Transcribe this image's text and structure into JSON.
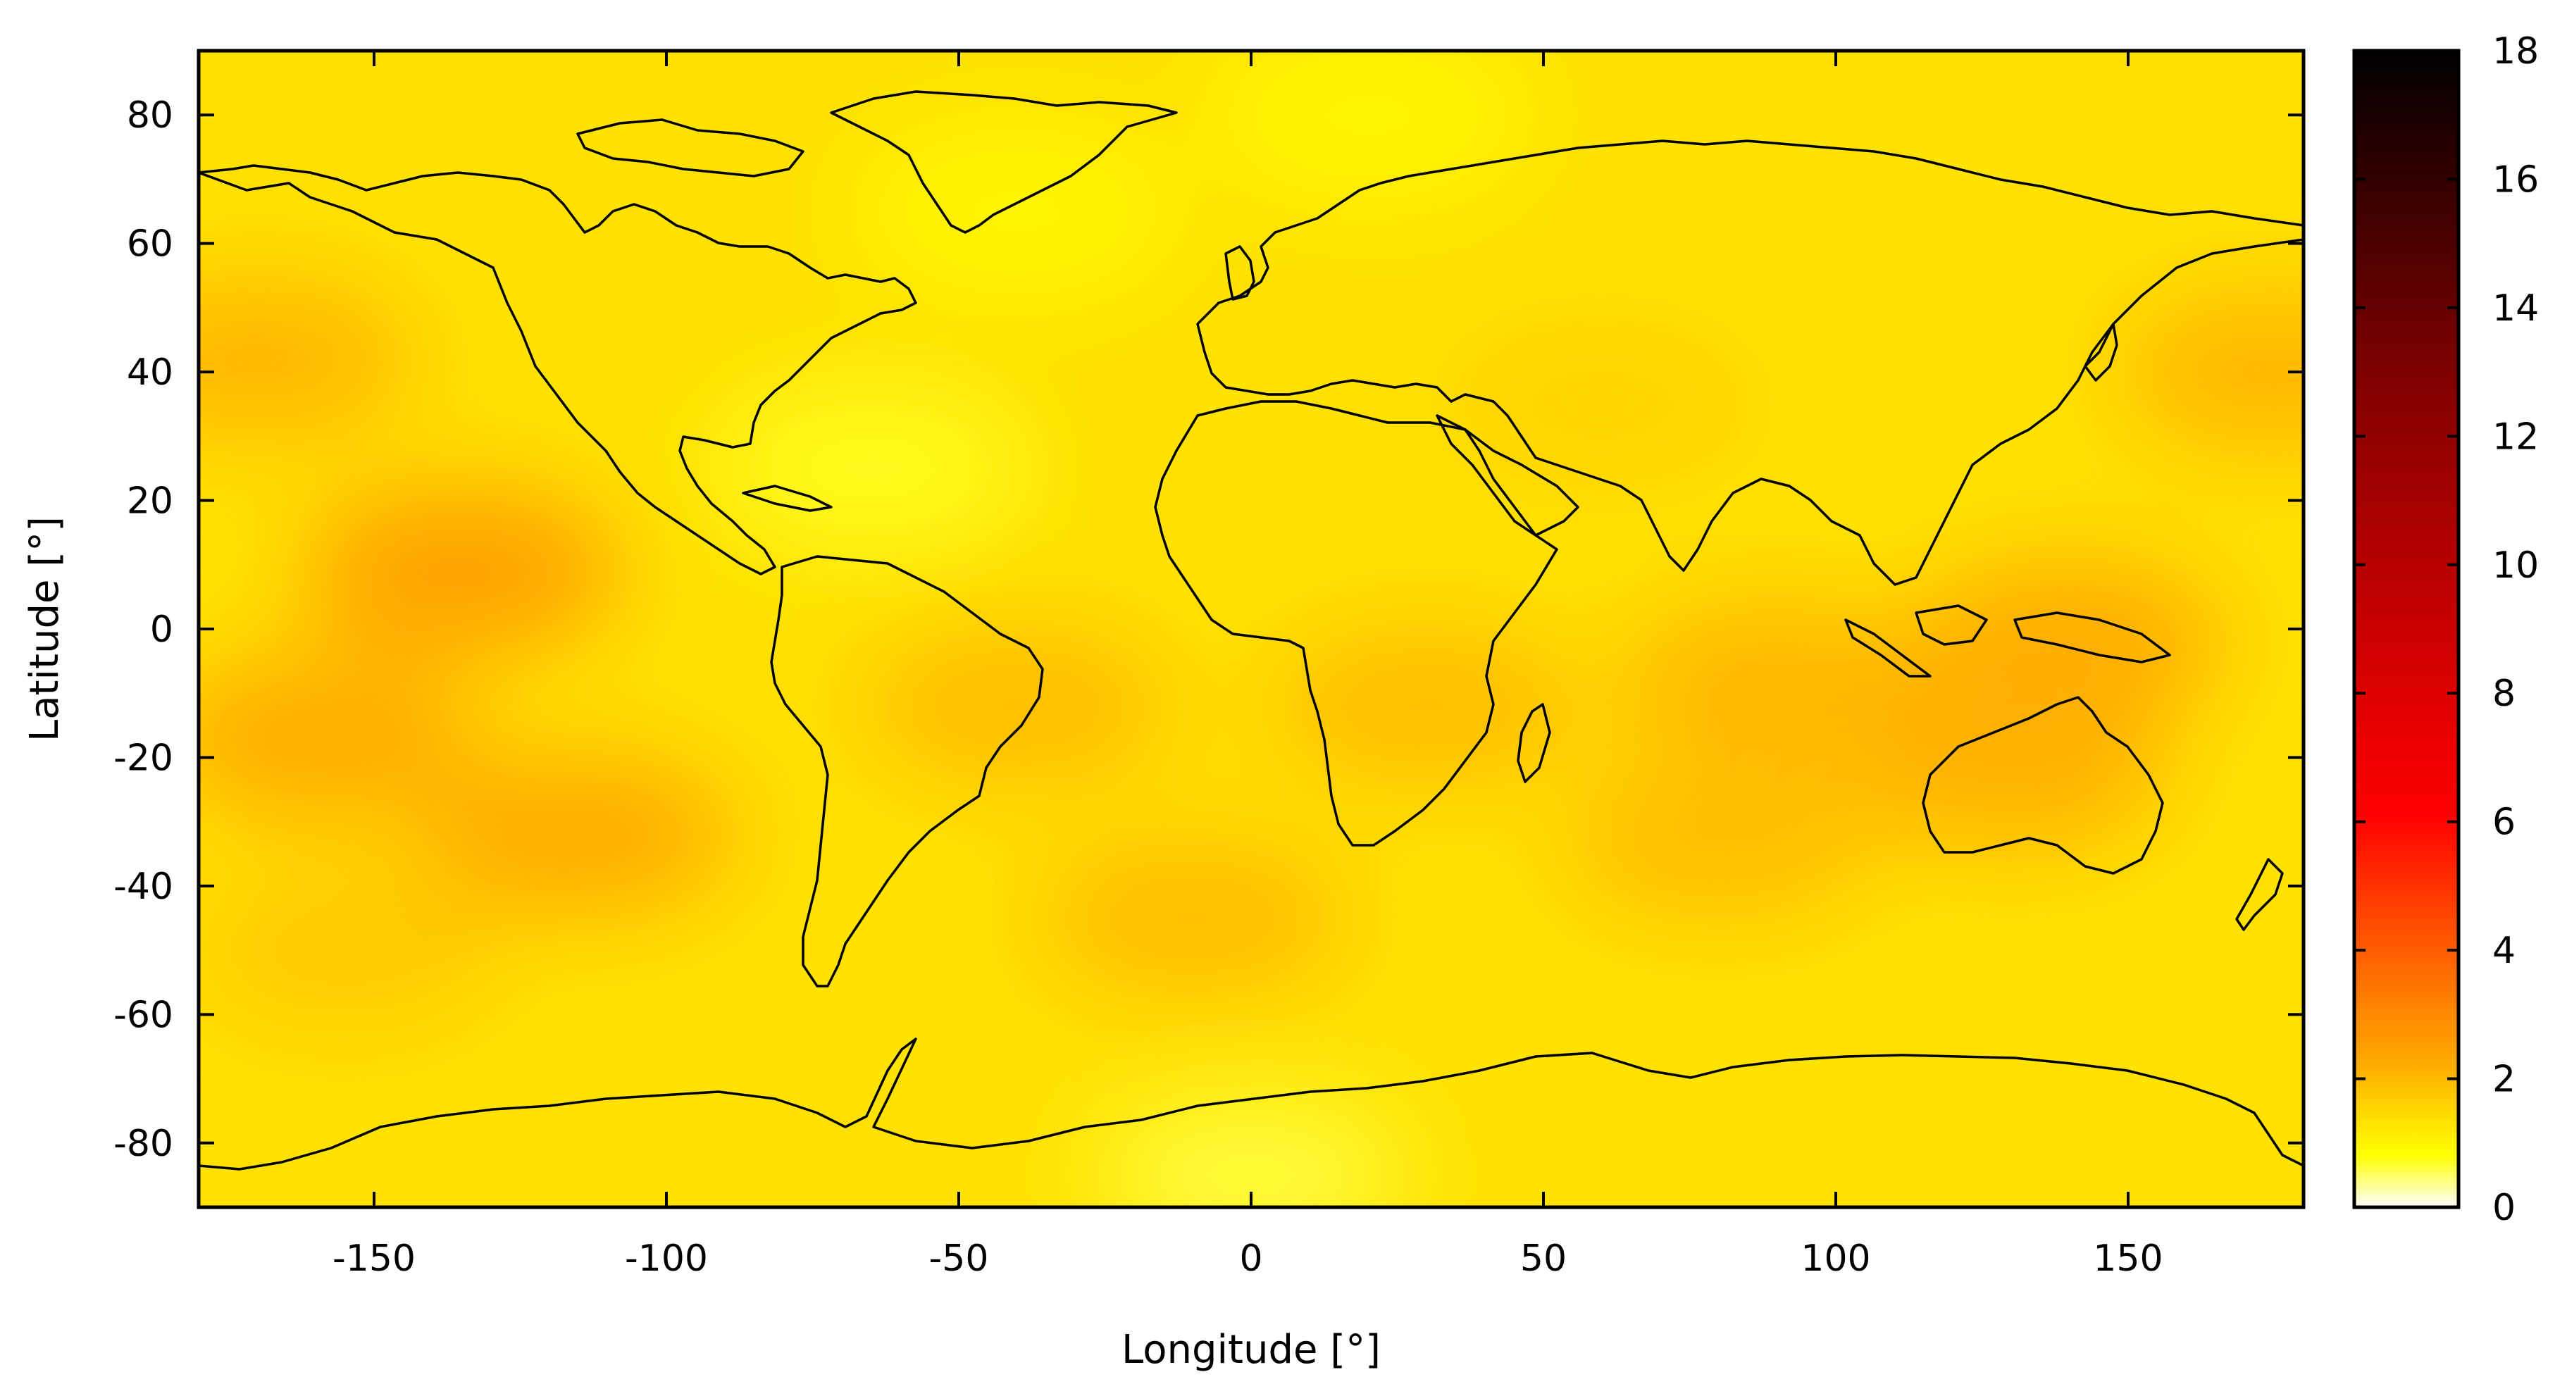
{
  "chart_data": {
    "type": "heatmap",
    "title": "",
    "xlabel": "Longitude [°]",
    "ylabel": "Latitude [°]",
    "xlim": [
      -180,
      180
    ],
    "ylim": [
      -90,
      90
    ],
    "xticks": [
      -150,
      -100,
      -50,
      0,
      50,
      100,
      150
    ],
    "yticks": [
      80,
      60,
      40,
      20,
      0,
      -20,
      -40,
      -60,
      -80
    ],
    "colorbar": {
      "range": [
        0,
        18
      ],
      "ticks": [
        0,
        2,
        4,
        6,
        8,
        10,
        12,
        14,
        16,
        18
      ],
      "colormap": [
        "#ffffff",
        "#ffff00",
        "#ffa500",
        "#ff0000",
        "#800000",
        "#000000"
      ]
    },
    "grid": false,
    "overlay": "coastlines",
    "field_summary": {
      "background_value": 1.3,
      "typical_max_value": 2.6,
      "note": "values are mostly between about 0.8 and 2.6; higher values in tropical/subtropical oceans, lower values near the Caribbean and polar latitudes"
    },
    "hotspots": [
      {
        "lon": -135,
        "lat": 9,
        "value": 2.6
      },
      {
        "lon": -160,
        "lat": -17,
        "value": 2.3
      },
      {
        "lon": -115,
        "lat": -32,
        "value": 2.3
      },
      {
        "lon": -170,
        "lat": 42,
        "value": 2.1
      },
      {
        "lon": 175,
        "lat": 40,
        "value": 2.1
      },
      {
        "lon": -40,
        "lat": -12,
        "value": 2.0
      },
      {
        "lon": 30,
        "lat": -12,
        "value": 2.0
      },
      {
        "lon": 90,
        "lat": -8,
        "value": 2.1
      },
      {
        "lon": 140,
        "lat": -2,
        "value": 2.3
      },
      {
        "lon": 130,
        "lat": -22,
        "value": 2.2
      },
      {
        "lon": -10,
        "lat": -45,
        "value": 2.0
      },
      {
        "lon": 80,
        "lat": -33,
        "value": 2.0
      },
      {
        "lon": -155,
        "lat": -50,
        "value": 1.8
      },
      {
        "lon": 60,
        "lat": 35,
        "value": 1.6
      }
    ],
    "coldspots": [
      {
        "lon": -65,
        "lat": 25,
        "value": 0.7
      },
      {
        "lon": -40,
        "lat": 65,
        "value": 0.9
      },
      {
        "lon": 0,
        "lat": -85,
        "value": 0.6
      },
      {
        "lon": 20,
        "lat": 80,
        "value": 0.9
      }
    ]
  }
}
